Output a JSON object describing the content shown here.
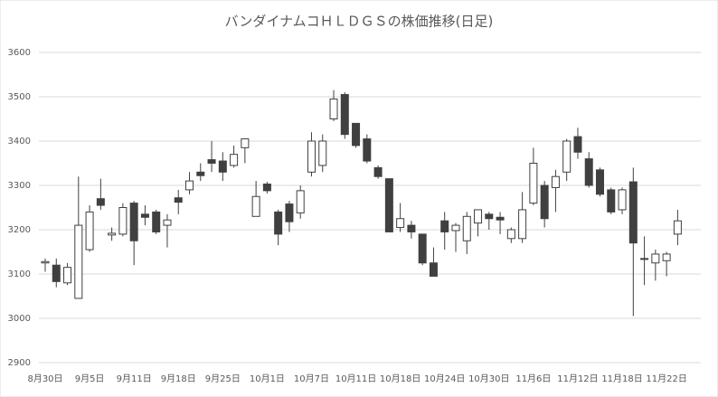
{
  "chart_data": {
    "type": "candlestick",
    "title": "バンダイナムコＨＬＤＧＳの株価推移(日足)",
    "categories": [
      "8月30日",
      null,
      null,
      null,
      "9月5日",
      null,
      null,
      null,
      "9月11日",
      null,
      null,
      null,
      "9月18日",
      null,
      null,
      null,
      "9月25日",
      null,
      null,
      null,
      "10月1日",
      null,
      null,
      null,
      "10月7日",
      null,
      null,
      null,
      "10月11日",
      null,
      null,
      null,
      "10月18日",
      null,
      null,
      null,
      "10月24日",
      null,
      null,
      null,
      "10月30日",
      null,
      null,
      null,
      "11月6日",
      null,
      null,
      null,
      "11月12日",
      null,
      null,
      null,
      "11月18日",
      null,
      null,
      null,
      "11月22日",
      null
    ],
    "open": [
      3125,
      3120,
      3080,
      3045,
      3155,
      3270,
      3188,
      3190,
      3260,
      3235,
      3240,
      3210,
      3272,
      3290,
      3330,
      3358,
      3355,
      3345,
      3385,
      3230,
      3303,
      3240,
      3258,
      3238,
      3330,
      3345,
      3450,
      3505,
      3440,
      3405,
      3340,
      3315,
      3205,
      3210,
      3190,
      3125,
      3220,
      3198,
      3175,
      3215,
      3235,
      3228,
      3180,
      3180,
      3260,
      3300,
      3295,
      3330,
      3410,
      3360,
      3335,
      3290,
      3245,
      3308,
      3135,
      3125,
      3130,
      3190
    ],
    "high": [
      3135,
      3135,
      3125,
      3320,
      3255,
      3315,
      3205,
      3260,
      3265,
      3255,
      3245,
      3235,
      3290,
      3330,
      3350,
      3400,
      3375,
      3390,
      3405,
      3310,
      3308,
      3245,
      3265,
      3300,
      3420,
      3415,
      3515,
      3510,
      3440,
      3415,
      3345,
      3315,
      3260,
      3220,
      3190,
      3160,
      3240,
      3215,
      3240,
      3245,
      3240,
      3240,
      3205,
      3285,
      3385,
      3310,
      3335,
      3405,
      3430,
      3375,
      3340,
      3295,
      3295,
      3340,
      3185,
      3155,
      3150,
      3245
    ],
    "low": [
      3105,
      3070,
      3075,
      3045,
      3150,
      3245,
      3175,
      3185,
      3120,
      3210,
      3190,
      3160,
      3235,
      3280,
      3310,
      3330,
      3310,
      3340,
      3350,
      3230,
      3282,
      3165,
      3195,
      3225,
      3320,
      3330,
      3445,
      3405,
      3385,
      3350,
      3315,
      3195,
      3195,
      3180,
      3120,
      3095,
      3155,
      3150,
      3145,
      3185,
      3200,
      3190,
      3170,
      3170,
      3255,
      3205,
      3240,
      3310,
      3360,
      3295,
      3275,
      3235,
      3235,
      3005,
      3075,
      3085,
      3095,
      3165
    ],
    "close": [
      3128,
      3083,
      3115,
      3210,
      3240,
      3255,
      3192,
      3250,
      3175,
      3228,
      3195,
      3222,
      3262,
      3310,
      3322,
      3350,
      3330,
      3370,
      3405,
      3275,
      3288,
      3190,
      3218,
      3288,
      3400,
      3400,
      3495,
      3415,
      3390,
      3355,
      3320,
      3195,
      3225,
      3195,
      3125,
      3095,
      3195,
      3210,
      3230,
      3245,
      3225,
      3222,
      3200,
      3245,
      3350,
      3225,
      3320,
      3400,
      3375,
      3300,
      3280,
      3240,
      3290,
      3170,
      3133,
      3145,
      3145,
      3220
    ],
    "up_color": "#ffffff",
    "down_color": "#404040",
    "ylim": [
      2900,
      3600
    ],
    "yticks": [
      2900,
      3000,
      3100,
      3200,
      3300,
      3400,
      3500,
      3600
    ],
    "grid": true
  }
}
